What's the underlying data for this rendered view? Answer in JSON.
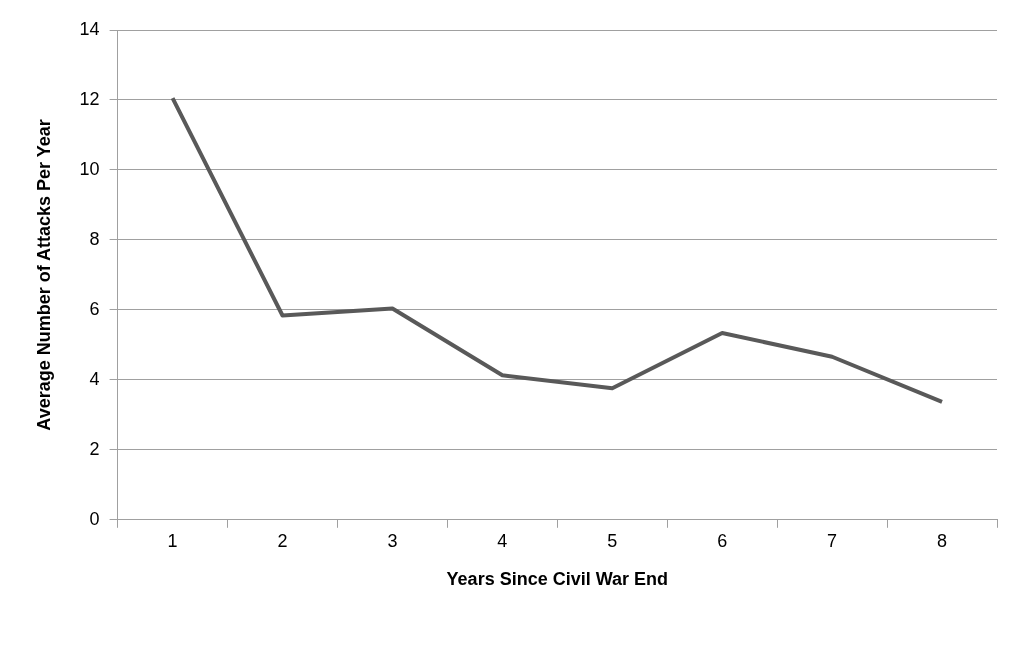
{
  "chart_data": {
    "type": "line",
    "xlabel": "Years Since Civil War End",
    "ylabel": "Average Number of Attacks Per Year",
    "categories": [
      "1",
      "2",
      "3",
      "4",
      "5",
      "6",
      "7",
      "8"
    ],
    "series": [
      {
        "color": "#595959",
        "values": [
          12.05,
          5.84,
          6.04,
          4.13,
          3.76,
          5.34,
          4.66,
          3.37
        ]
      }
    ],
    "ylim": [
      0,
      14
    ],
    "yticks": [
      0,
      2,
      4,
      6,
      8,
      10,
      12,
      14
    ],
    "grid": "y",
    "legend": false,
    "marker": "none",
    "line_style": "solid"
  }
}
